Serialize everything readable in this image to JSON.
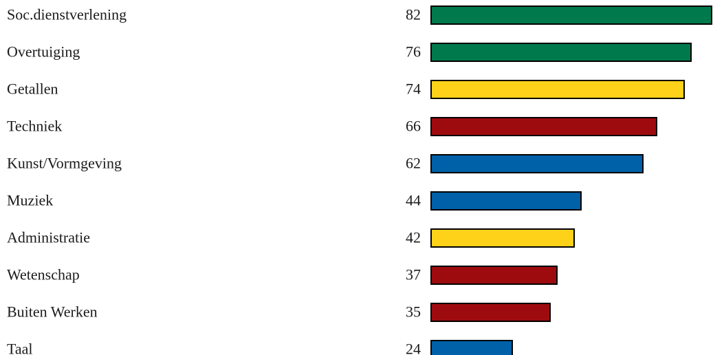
{
  "chart_data": {
    "type": "bar",
    "orientation": "horizontal",
    "categories": [
      "Soc.dienstverlening",
      "Overtuiging",
      "Getallen",
      "Techniek",
      "Kunst/Vormgeving",
      "Muziek",
      "Administratie",
      "Wetenschap",
      "Buiten Werken",
      "Taal"
    ],
    "values": [
      82,
      76,
      74,
      66,
      62,
      44,
      42,
      37,
      35,
      24
    ],
    "value_labels": [
      "82",
      "76",
      "74",
      "66",
      "62",
      "44",
      "42",
      "37",
      "35",
      "24"
    ],
    "colors": [
      "#007A4D",
      "#007A4D",
      "#FFD21A",
      "#9E0B0F",
      "#0060A8",
      "#0060A8",
      "#FFD21A",
      "#9E0B0F",
      "#9E0B0F",
      "#0060A8"
    ],
    "xlim": [
      0,
      82
    ],
    "title": "",
    "xlabel": "",
    "ylabel": "",
    "grid": false,
    "legend": "none"
  }
}
